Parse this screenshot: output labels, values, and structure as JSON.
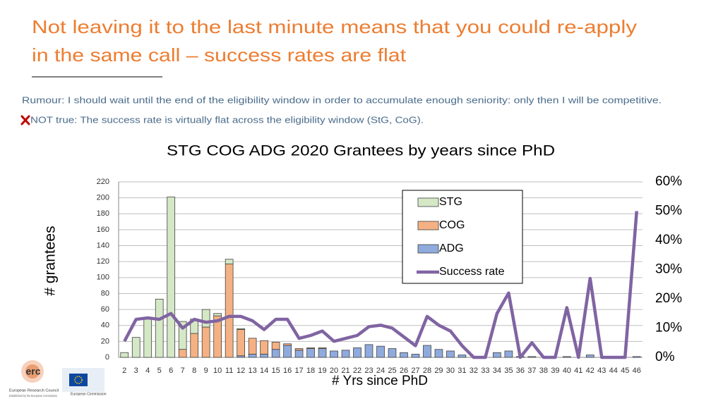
{
  "slide": {
    "title": [
      "Not leaving it to the last minute means that you could re-apply",
      "in the same call – success rates are flat"
    ],
    "rumour": "Rumour: I should wait until the end of the eligibility window in order to accumulate enough seniority: only then I will be competitive.",
    "not_true": "NOT true: The success rate is virtually flat across the eligibility window (StG, CoG)."
  },
  "logos": {
    "erc": "erc",
    "erc_caption": "European Research Council",
    "erc_subcaption": "Established by the European Commission",
    "ec_caption": "European Commission"
  },
  "chart_data": {
    "type": "bar",
    "stacked": true,
    "title": "STG COG ADG 2020 Grantees by years since PhD",
    "x_label": "# Yrs since PhD",
    "y_label": "# grantees",
    "categories": [
      "2",
      "3",
      "4",
      "5",
      "6",
      "7",
      "8",
      "9",
      "10",
      "11",
      "12",
      "13",
      "14",
      "15",
      "16",
      "17",
      "18",
      "19",
      "20",
      "21",
      "22",
      "23",
      "24",
      "25",
      "26",
      "27",
      "28",
      "29",
      "30",
      "31",
      "32",
      "33",
      "34",
      "35",
      "36",
      "37",
      "38",
      "39",
      "40",
      "41",
      "42",
      "43",
      "44",
      "45",
      "46"
    ],
    "series": [
      {
        "name": "STG",
        "color": "#d5e8c6",
        "values": [
          6,
          25,
          48,
          73,
          201,
          35,
          18,
          22,
          3,
          6,
          1,
          0,
          0,
          0,
          0,
          0,
          0,
          0,
          0,
          0,
          0,
          0,
          0,
          0,
          0,
          0,
          0,
          0,
          0,
          0,
          0,
          0,
          0,
          0,
          0,
          0,
          0,
          0,
          0,
          0,
          0,
          0,
          0,
          0,
          0
        ]
      },
      {
        "name": "COG",
        "color": "#f4b183",
        "values": [
          0,
          0,
          0,
          0,
          0,
          10,
          30,
          38,
          52,
          117,
          33,
          20,
          17,
          9,
          2,
          2,
          1,
          1,
          0,
          0,
          0,
          0,
          0,
          0,
          0,
          0,
          0,
          0,
          0,
          0,
          0,
          0,
          0,
          0,
          0,
          0,
          0,
          0,
          0,
          0,
          0,
          0,
          0,
          0,
          0
        ]
      },
      {
        "name": "ADG",
        "color": "#8faadc",
        "values": [
          0,
          0,
          0,
          0,
          0,
          0,
          0,
          0,
          0,
          0,
          2,
          4,
          4,
          10,
          15,
          9,
          11,
          11,
          8,
          9,
          12,
          16,
          14,
          11,
          6,
          4,
          15,
          10,
          8,
          3,
          0,
          0,
          6,
          8,
          1,
          1,
          0,
          0,
          1,
          0,
          3,
          0,
          0,
          0,
          1
        ]
      },
      {
        "name": "Success rate",
        "type": "line",
        "axis": "y2",
        "color": "#8064a2",
        "values": [
          5.5,
          13,
          13.5,
          13,
          15,
          10,
          13,
          12,
          12.5,
          14,
          14,
          12.5,
          9.5,
          13,
          13,
          6.5,
          7.5,
          9,
          5.5,
          6.5,
          7.5,
          10.5,
          11,
          10,
          7,
          4,
          14,
          11,
          9,
          4,
          0,
          0,
          15,
          22,
          0,
          5,
          0,
          0,
          17,
          0,
          27,
          0,
          0,
          0,
          50
        ]
      }
    ],
    "ylim": [
      0,
      220
    ],
    "yticks": [
      0,
      20,
      40,
      60,
      80,
      100,
      120,
      140,
      160,
      180,
      200,
      220
    ],
    "y2lim": [
      0,
      60
    ],
    "y2ticks": [
      {
        "value": 0,
        "label": "0%"
      },
      {
        "value": 10,
        "label": "10%"
      },
      {
        "value": 20,
        "label": "20%"
      },
      {
        "value": 30,
        "label": "30%"
      },
      {
        "value": 40,
        "label": "40%"
      },
      {
        "value": 50,
        "label": "50%"
      },
      {
        "value": 60,
        "label": "60%"
      }
    ],
    "grid": true
  }
}
